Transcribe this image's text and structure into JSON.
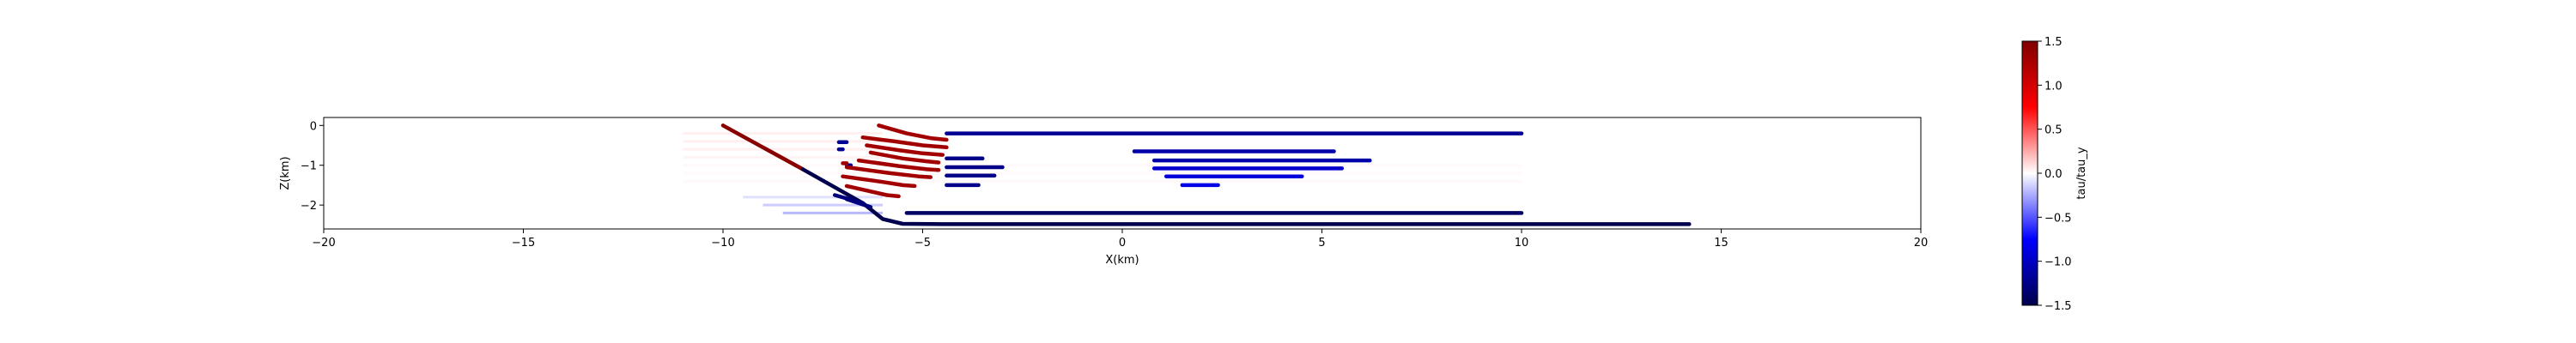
{
  "chart_data": {
    "type": "scatter",
    "title": "",
    "xlabel": "X(km)",
    "ylabel": "Z(km)",
    "xlim": [
      -20,
      20
    ],
    "ylim": [
      -2.6,
      0.2
    ],
    "x_ticks": [
      -20,
      -15,
      -10,
      -5,
      0,
      5,
      10,
      15,
      20
    ],
    "x_tick_labels": [
      "−20",
      "−15",
      "−10",
      "−5",
      "0",
      "5",
      "10",
      "15",
      "20"
    ],
    "y_ticks": [
      0,
      -1,
      -2
    ],
    "y_tick_labels": [
      "0",
      "−1",
      "−2"
    ],
    "grid": false,
    "colorbar": {
      "label": "tau/tau_y",
      "range": [
        -1.5,
        1.5
      ],
      "ticks": [
        1.5,
        1.0,
        0.5,
        0.0,
        -0.5,
        -1.0,
        -1.5
      ],
      "tick_labels": [
        "1.5",
        "1.0",
        "0.5",
        "0.0",
        "−0.5",
        "−1.0",
        "−1.5"
      ],
      "colormap": "seismic"
    },
    "faint_bands": [
      {
        "name": "band-1",
        "x": [
          -11.0,
          -6.0
        ],
        "y": -0.2,
        "value": 0.08
      },
      {
        "name": "band-2",
        "x": [
          -11.0,
          -6.0
        ],
        "y": -0.4,
        "value": 0.08
      },
      {
        "name": "band-3",
        "x": [
          -11.0,
          -6.0
        ],
        "y": -0.6,
        "value": 0.08
      },
      {
        "name": "band-4",
        "x": [
          -11.0,
          -6.0
        ],
        "y": -0.8,
        "value": 0.06
      },
      {
        "name": "band-5",
        "x": [
          -11.0,
          10.0
        ],
        "y": -1.0,
        "value": 0.03
      },
      {
        "name": "band-6",
        "x": [
          -11.0,
          10.0
        ],
        "y": -1.2,
        "value": 0.03
      },
      {
        "name": "band-7",
        "x": [
          -11.0,
          10.0
        ],
        "y": -1.4,
        "value": 0.03
      },
      {
        "name": "band-8",
        "x": [
          -9.5,
          -6.0
        ],
        "y": -1.8,
        "value": -0.15
      },
      {
        "name": "band-9",
        "x": [
          -9.0,
          -6.0
        ],
        "y": -2.0,
        "value": -0.25
      },
      {
        "name": "band-10",
        "x": [
          -8.5,
          -6.0
        ],
        "y": -2.2,
        "value": -0.35
      }
    ],
    "series": [
      {
        "name": "seg-main-upper",
        "value": 1.45,
        "points": [
          [
            -10.0,
            0.0
          ],
          [
            -8.0,
            -1.1
          ]
        ]
      },
      {
        "name": "seg-main-lower",
        "value": -1.5,
        "points": [
          [
            -8.0,
            -1.1
          ],
          [
            -6.5,
            -1.95
          ],
          [
            -6.0,
            -2.35
          ],
          [
            -5.5,
            -2.47
          ],
          [
            -4.5,
            -2.48
          ],
          [
            14.2,
            -2.48
          ]
        ]
      },
      {
        "name": "seg-blue-top",
        "value": -1.2,
        "points": [
          [
            -4.4,
            -0.2
          ],
          [
            10.0,
            -0.2
          ]
        ]
      },
      {
        "name": "seg-blue-1",
        "value": -1.1,
        "points": [
          [
            0.3,
            -0.65
          ],
          [
            5.3,
            -0.65
          ]
        ]
      },
      {
        "name": "seg-blue-2",
        "value": -1.1,
        "points": [
          [
            0.8,
            -0.88
          ],
          [
            6.2,
            -0.88
          ]
        ]
      },
      {
        "name": "seg-blue-3",
        "value": -0.95,
        "points": [
          [
            0.8,
            -1.08
          ],
          [
            5.5,
            -1.08
          ]
        ]
      },
      {
        "name": "seg-blue-4",
        "value": -0.9,
        "points": [
          [
            1.1,
            -1.28
          ],
          [
            4.5,
            -1.28
          ]
        ]
      },
      {
        "name": "seg-blue-5",
        "value": -0.85,
        "points": [
          [
            1.5,
            -1.5
          ],
          [
            2.4,
            -1.5
          ]
        ]
      },
      {
        "name": "seg-blue-6",
        "value": -1.25,
        "points": [
          [
            -4.4,
            -0.83
          ],
          [
            -3.5,
            -0.83
          ]
        ]
      },
      {
        "name": "seg-blue-7",
        "value": -1.25,
        "points": [
          [
            -4.4,
            -1.05
          ],
          [
            -3.0,
            -1.05
          ]
        ]
      },
      {
        "name": "seg-blue-8",
        "value": -1.25,
        "points": [
          [
            -4.4,
            -1.26
          ],
          [
            -3.2,
            -1.26
          ]
        ]
      },
      {
        "name": "seg-blue-9",
        "value": -1.25,
        "points": [
          [
            -4.4,
            -1.5
          ],
          [
            -3.6,
            -1.5
          ]
        ]
      },
      {
        "name": "seg-blue-bottom",
        "value": -1.4,
        "points": [
          [
            -5.4,
            -2.2
          ],
          [
            10.0,
            -2.2
          ]
        ]
      },
      {
        "name": "seg-blue-left-1",
        "value": -1.3,
        "points": [
          [
            -7.2,
            -1.75
          ],
          [
            -6.5,
            -1.95
          ]
        ]
      },
      {
        "name": "seg-blue-left-2",
        "value": -1.3,
        "points": [
          [
            -6.9,
            -1.85
          ],
          [
            -6.3,
            -2.05
          ]
        ]
      },
      {
        "name": "seg-blue-dot-1",
        "value": -1.2,
        "points": [
          [
            -7.1,
            -0.42
          ],
          [
            -6.9,
            -0.42
          ]
        ]
      },
      {
        "name": "seg-blue-dot-2",
        "value": -1.2,
        "points": [
          [
            -7.1,
            -0.6
          ],
          [
            -7.0,
            -0.6
          ]
        ]
      },
      {
        "name": "seg-blue-dot-3",
        "value": -1.2,
        "points": [
          [
            -6.9,
            -1.0
          ],
          [
            -6.8,
            -1.0
          ]
        ]
      },
      {
        "name": "seg-red-1",
        "value": 1.3,
        "points": [
          [
            -6.1,
            0.0
          ],
          [
            -5.4,
            -0.2
          ],
          [
            -4.8,
            -0.32
          ],
          [
            -4.4,
            -0.36
          ]
        ]
      },
      {
        "name": "seg-red-2",
        "value": 1.3,
        "points": [
          [
            -6.5,
            -0.3
          ],
          [
            -5.7,
            -0.4
          ],
          [
            -5.0,
            -0.5
          ],
          [
            -4.4,
            -0.55
          ]
        ]
      },
      {
        "name": "seg-red-3",
        "value": 1.3,
        "points": [
          [
            -6.4,
            -0.5
          ],
          [
            -5.6,
            -0.62
          ],
          [
            -5.0,
            -0.7
          ],
          [
            -4.5,
            -0.74
          ]
        ]
      },
      {
        "name": "seg-red-4",
        "value": 1.3,
        "points": [
          [
            -6.3,
            -0.68
          ],
          [
            -5.5,
            -0.83
          ],
          [
            -4.9,
            -0.9
          ],
          [
            -4.6,
            -0.93
          ]
        ]
      },
      {
        "name": "seg-red-5",
        "value": 1.3,
        "points": [
          [
            -6.6,
            -0.88
          ],
          [
            -5.6,
            -1.02
          ],
          [
            -4.9,
            -1.1
          ],
          [
            -4.6,
            -1.12
          ]
        ]
      },
      {
        "name": "seg-red-6",
        "value": 1.3,
        "points": [
          [
            -6.9,
            -1.05
          ],
          [
            -5.8,
            -1.2
          ],
          [
            -5.1,
            -1.28
          ],
          [
            -4.8,
            -1.3
          ]
        ]
      },
      {
        "name": "seg-red-7",
        "value": 1.3,
        "points": [
          [
            -7.0,
            -1.28
          ],
          [
            -6.0,
            -1.42
          ],
          [
            -5.5,
            -1.5
          ],
          [
            -5.2,
            -1.52
          ]
        ]
      },
      {
        "name": "seg-red-8",
        "value": 1.3,
        "points": [
          [
            -6.9,
            -1.52
          ],
          [
            -6.2,
            -1.68
          ],
          [
            -5.9,
            -1.75
          ],
          [
            -5.6,
            -1.78
          ]
        ]
      },
      {
        "name": "seg-red-dot",
        "value": 1.3,
        "points": [
          [
            -7.0,
            -0.95
          ],
          [
            -6.9,
            -0.95
          ]
        ]
      }
    ]
  }
}
